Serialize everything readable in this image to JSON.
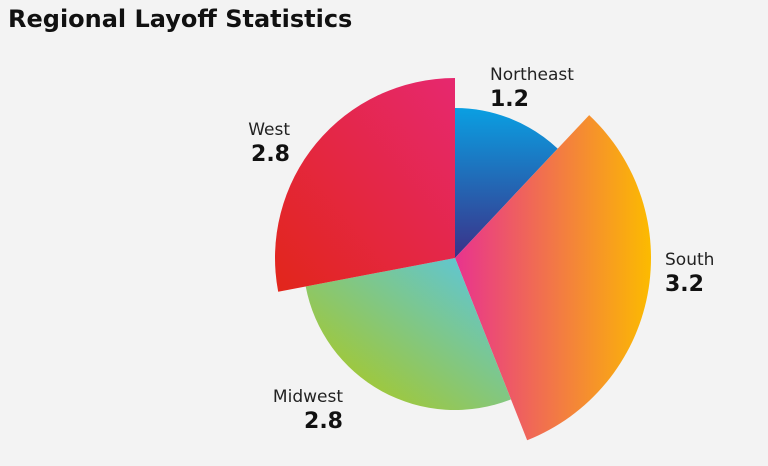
{
  "chart_data": {
    "type": "pie",
    "title": "Regional Layoff Statistics",
    "categories": [
      "Northeast",
      "South",
      "Midwest",
      "West"
    ],
    "values": [
      1.2,
      3.2,
      2.8,
      2.8
    ]
  }
}
